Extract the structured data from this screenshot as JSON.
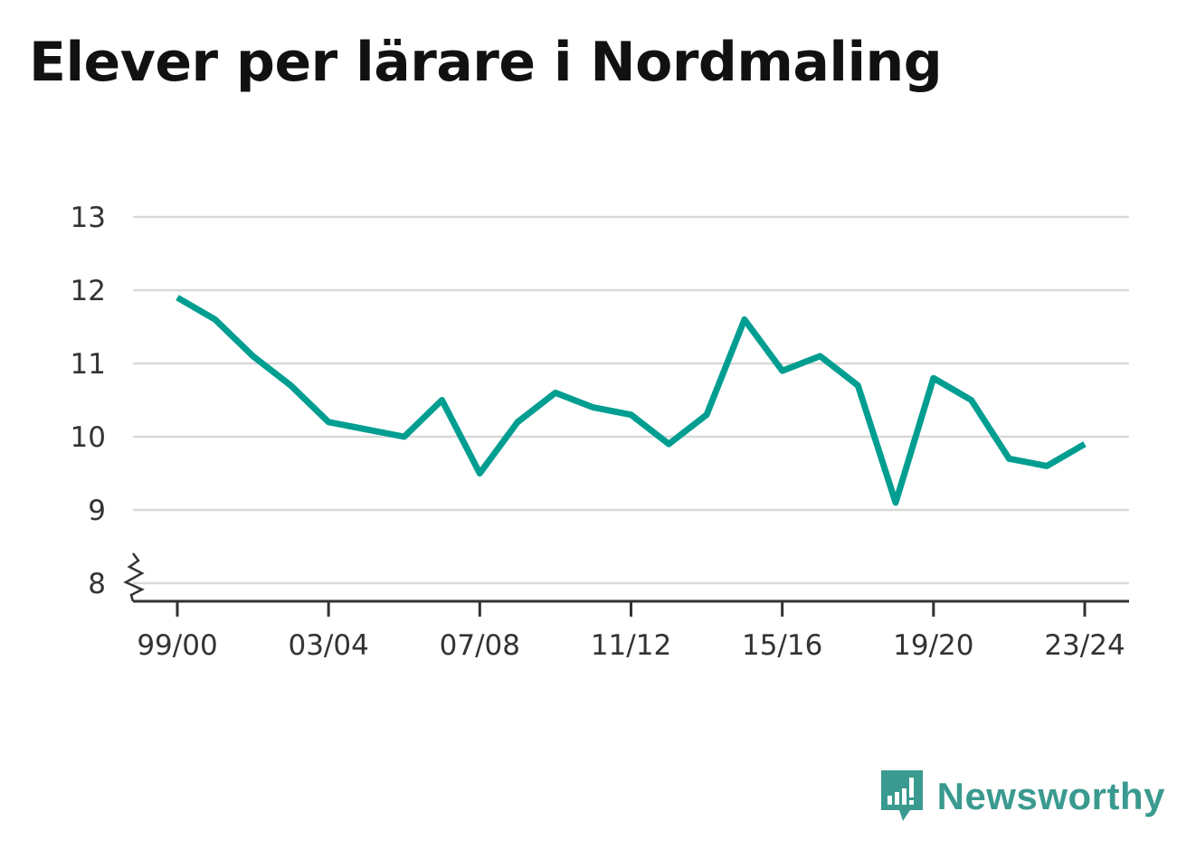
{
  "title": "Elever per lärare i Nordmaling",
  "brand": {
    "name": "Newsworthy",
    "icon": "newsworthy-logo-icon",
    "color": "#3a9a8f"
  },
  "colors": {
    "line": "#009e91",
    "grid": "#d9d9d9",
    "axis": "#333333",
    "text": "#333333"
  },
  "chart_data": {
    "type": "line",
    "title": "Elever per lärare i Nordmaling",
    "xlabel": "",
    "ylabel": "",
    "ylim": [
      8,
      13
    ],
    "y_axis_break": true,
    "yticks": [
      8,
      9,
      10,
      11,
      12,
      13
    ],
    "xticks": [
      "99/00",
      "03/04",
      "07/08",
      "11/12",
      "15/16",
      "19/20",
      "23/24"
    ],
    "grid": true,
    "categories": [
      "99/00",
      "00/01",
      "01/02",
      "02/03",
      "03/04",
      "04/05",
      "05/06",
      "06/07",
      "07/08",
      "08/09",
      "09/10",
      "10/11",
      "11/12",
      "12/13",
      "13/14",
      "14/15",
      "15/16",
      "16/17",
      "17/18",
      "18/19",
      "19/20",
      "20/21",
      "21/22",
      "22/23",
      "23/24"
    ],
    "series": [
      {
        "values": [
          11.9,
          11.6,
          11.1,
          10.7,
          10.2,
          10.1,
          10.0,
          10.5,
          9.5,
          10.2,
          10.6,
          10.4,
          10.3,
          9.9,
          10.3,
          11.6,
          10.9,
          11.1,
          10.7,
          9.1,
          10.8,
          10.5,
          9.7,
          9.6,
          9.9
        ]
      }
    ]
  }
}
